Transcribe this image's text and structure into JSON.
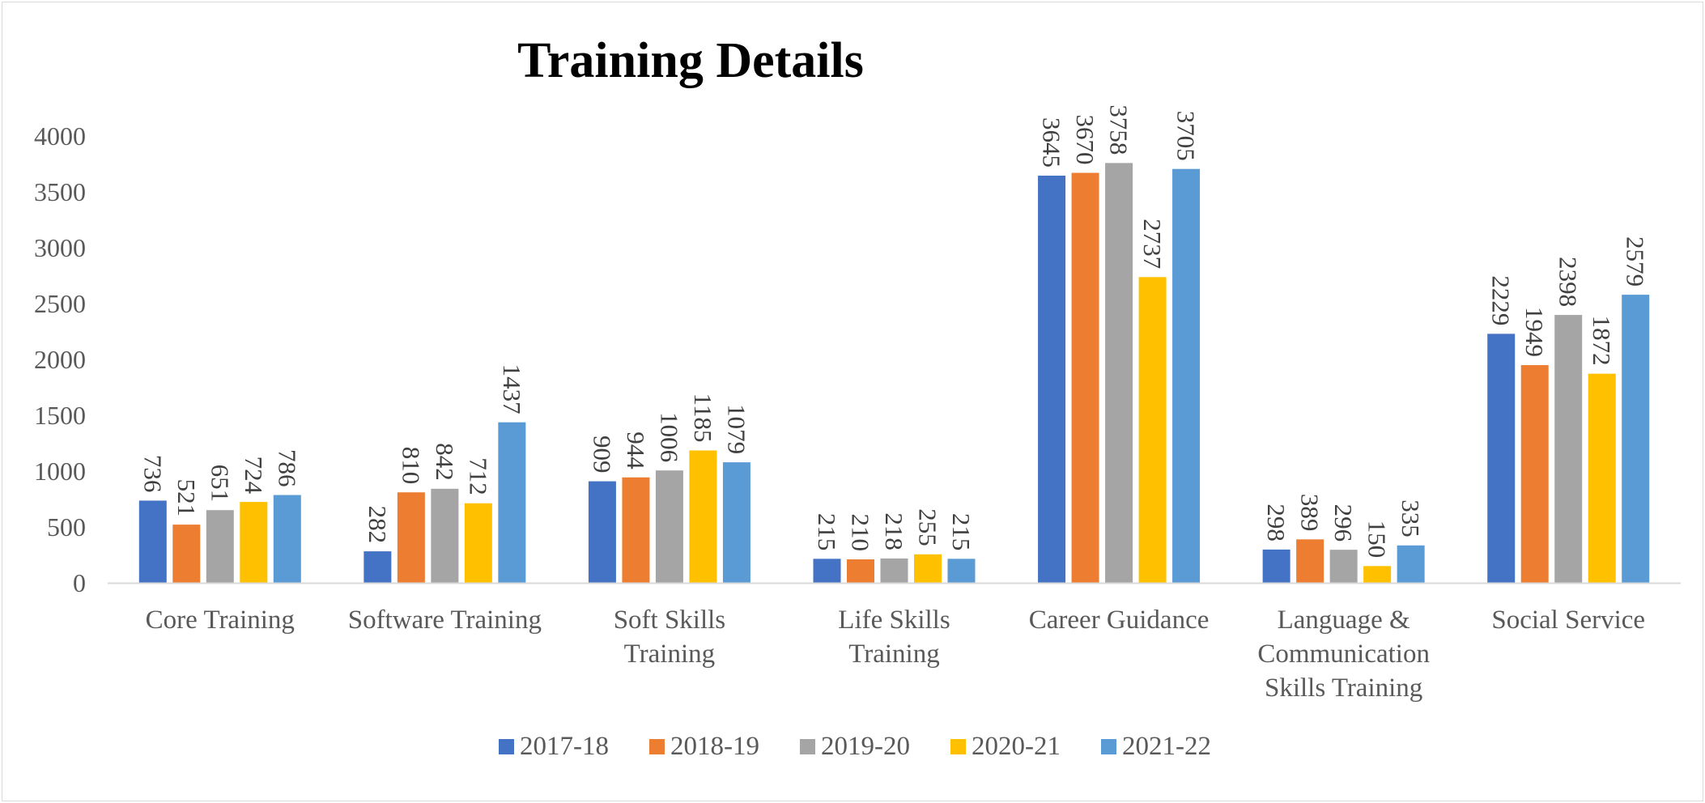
{
  "chart_data": {
    "type": "bar",
    "title": "Training Details",
    "xlabel": "",
    "ylabel": "",
    "ylim": [
      0,
      4000
    ],
    "yticks": [
      0,
      500,
      1000,
      1500,
      2000,
      2500,
      3000,
      3500,
      4000
    ],
    "grid": false,
    "legend_position": "bottom",
    "categories": [
      "Core Training",
      "Software Training",
      "Soft Skills Training",
      "Life Skills Training",
      "Career Guidance",
      "Language & Communication Skills Training",
      "Social Service"
    ],
    "category_lines": [
      [
        "Core Training"
      ],
      [
        "Software Training"
      ],
      [
        "Soft Skills",
        "Training"
      ],
      [
        "Life Skills",
        "Training"
      ],
      [
        "Career Guidance"
      ],
      [
        "Language &",
        "Communication",
        "Skills Training"
      ],
      [
        "Social Service"
      ]
    ],
    "series": [
      {
        "name": "2017-18",
        "color": "#4472C4",
        "values": [
          736,
          282,
          909,
          215,
          3645,
          298,
          2229
        ]
      },
      {
        "name": "2018-19",
        "color": "#ED7D31",
        "values": [
          521,
          810,
          944,
          210,
          3670,
          389,
          1949
        ]
      },
      {
        "name": "2019-20",
        "color": "#A5A5A5",
        "values": [
          651,
          842,
          1006,
          218,
          3758,
          296,
          2398
        ]
      },
      {
        "name": "2020-21",
        "color": "#FFC000",
        "values": [
          724,
          712,
          1185,
          255,
          2737,
          150,
          1872
        ]
      },
      {
        "name": "2021-22",
        "color": "#5B9BD5",
        "values": [
          786,
          1437,
          1079,
          215,
          3705,
          335,
          2579
        ]
      }
    ]
  }
}
